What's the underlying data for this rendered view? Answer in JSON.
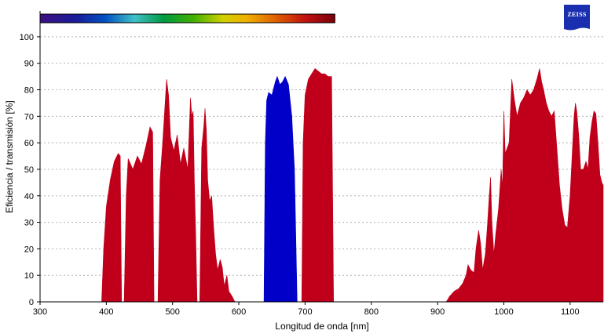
{
  "brand": {
    "logo_text": "ZEISS",
    "color": "#1a2fb0"
  },
  "chart_data": {
    "type": "area",
    "xlabel": "Longitud de onda [nm]",
    "ylabel": "Eficiencia / transmisión [%]",
    "xlim": [
      300,
      1150
    ],
    "ylim": [
      0,
      105
    ],
    "x_ticks": [
      300,
      400,
      500,
      600,
      700,
      800,
      900,
      1000,
      1100
    ],
    "y_ticks": [
      0,
      10,
      20,
      30,
      40,
      50,
      60,
      70,
      80,
      90,
      100
    ],
    "grid": {
      "horizontal": true,
      "vertical": false,
      "style": "dotted"
    },
    "spectrum_bar": {
      "range": [
        300,
        745
      ]
    },
    "series": [
      {
        "color": "#c0001a",
        "points": [
          [
            393,
            0
          ],
          [
            396,
            20
          ],
          [
            400,
            36
          ],
          [
            406,
            46
          ],
          [
            412,
            53
          ],
          [
            418,
            56
          ],
          [
            421,
            55
          ],
          [
            423,
            0
          ],
          [
            427,
            0
          ],
          [
            430,
            40
          ],
          [
            433,
            54
          ],
          [
            440,
            50
          ],
          [
            447,
            55
          ],
          [
            453,
            52
          ],
          [
            460,
            59
          ],
          [
            466,
            66
          ],
          [
            470,
            64
          ],
          [
            472,
            0
          ],
          [
            478,
            0
          ],
          [
            481,
            46
          ],
          [
            485,
            60
          ],
          [
            488,
            72
          ],
          [
            491,
            84
          ],
          [
            494,
            78
          ],
          [
            497,
            62
          ],
          [
            502,
            57
          ],
          [
            507,
            63
          ],
          [
            512,
            52
          ],
          [
            517,
            58
          ],
          [
            523,
            50
          ],
          [
            527,
            77
          ],
          [
            529,
            70
          ],
          [
            531,
            72
          ],
          [
            533,
            45
          ],
          [
            535,
            25
          ],
          [
            537,
            0
          ],
          [
            541,
            0
          ],
          [
            544,
            58
          ],
          [
            547,
            66
          ],
          [
            549,
            73
          ],
          [
            551,
            65
          ],
          [
            553,
            46
          ],
          [
            556,
            38
          ],
          [
            559,
            40
          ],
          [
            562,
            28
          ],
          [
            565,
            18
          ],
          [
            568,
            12
          ],
          [
            572,
            16
          ],
          [
            575,
            13
          ],
          [
            578,
            6
          ],
          [
            582,
            10
          ],
          [
            585,
            4
          ],
          [
            590,
            2
          ],
          [
            594,
            0
          ]
        ]
      },
      {
        "color": "#0000c8",
        "points": [
          [
            638,
            0
          ],
          [
            640,
            60
          ],
          [
            642,
            76
          ],
          [
            645,
            79
          ],
          [
            650,
            78
          ],
          [
            655,
            83
          ],
          [
            658,
            85
          ],
          [
            662,
            82
          ],
          [
            666,
            83
          ],
          [
            670,
            85
          ],
          [
            675,
            82
          ],
          [
            680,
            70
          ],
          [
            684,
            50
          ],
          [
            688,
            0
          ]
        ]
      },
      {
        "color": "#c0001a",
        "points": [
          [
            695,
            0
          ],
          [
            697,
            60
          ],
          [
            700,
            78
          ],
          [
            705,
            84
          ],
          [
            710,
            86
          ],
          [
            715,
            88
          ],
          [
            720,
            87
          ],
          [
            725,
            86
          ],
          [
            730,
            86
          ],
          [
            735,
            85
          ],
          [
            740,
            85
          ],
          [
            743,
            0
          ]
        ]
      },
      {
        "color": "#c0001a",
        "points": [
          [
            913,
            0
          ],
          [
            918,
            2
          ],
          [
            925,
            4
          ],
          [
            932,
            5
          ],
          [
            938,
            7
          ],
          [
            943,
            10
          ],
          [
            946,
            14
          ],
          [
            950,
            12
          ],
          [
            955,
            11
          ],
          [
            958,
            20
          ],
          [
            962,
            27
          ],
          [
            965,
            22
          ],
          [
            968,
            12
          ],
          [
            972,
            18
          ],
          [
            975,
            28
          ],
          [
            978,
            40
          ],
          [
            980,
            47
          ],
          [
            982,
            30
          ],
          [
            985,
            18
          ],
          [
            988,
            26
          ],
          [
            992,
            35
          ],
          [
            996,
            50
          ],
          [
            998,
            43
          ],
          [
            1000,
            72
          ],
          [
            1002,
            56
          ],
          [
            1005,
            58
          ],
          [
            1008,
            60
          ],
          [
            1012,
            84
          ],
          [
            1016,
            76
          ],
          [
            1020,
            70
          ],
          [
            1025,
            75
          ],
          [
            1030,
            77
          ],
          [
            1035,
            80
          ],
          [
            1040,
            78
          ],
          [
            1045,
            80
          ],
          [
            1050,
            84
          ],
          [
            1054,
            88
          ],
          [
            1057,
            83
          ],
          [
            1060,
            80
          ],
          [
            1064,
            75
          ],
          [
            1068,
            72
          ],
          [
            1072,
            70
          ],
          [
            1076,
            72
          ],
          [
            1080,
            58
          ],
          [
            1084,
            44
          ],
          [
            1088,
            35
          ],
          [
            1092,
            29
          ],
          [
            1096,
            28
          ],
          [
            1100,
            40
          ],
          [
            1103,
            55
          ],
          [
            1106,
            70
          ],
          [
            1108,
            75
          ],
          [
            1110,
            72
          ],
          [
            1113,
            63
          ],
          [
            1116,
            50
          ],
          [
            1120,
            50
          ],
          [
            1124,
            53
          ],
          [
            1127,
            50
          ],
          [
            1130,
            62
          ],
          [
            1133,
            68
          ],
          [
            1136,
            72
          ],
          [
            1139,
            71
          ],
          [
            1142,
            60
          ],
          [
            1145,
            48
          ],
          [
            1148,
            45
          ],
          [
            1150,
            44
          ],
          [
            1150,
            0
          ]
        ]
      }
    ]
  }
}
